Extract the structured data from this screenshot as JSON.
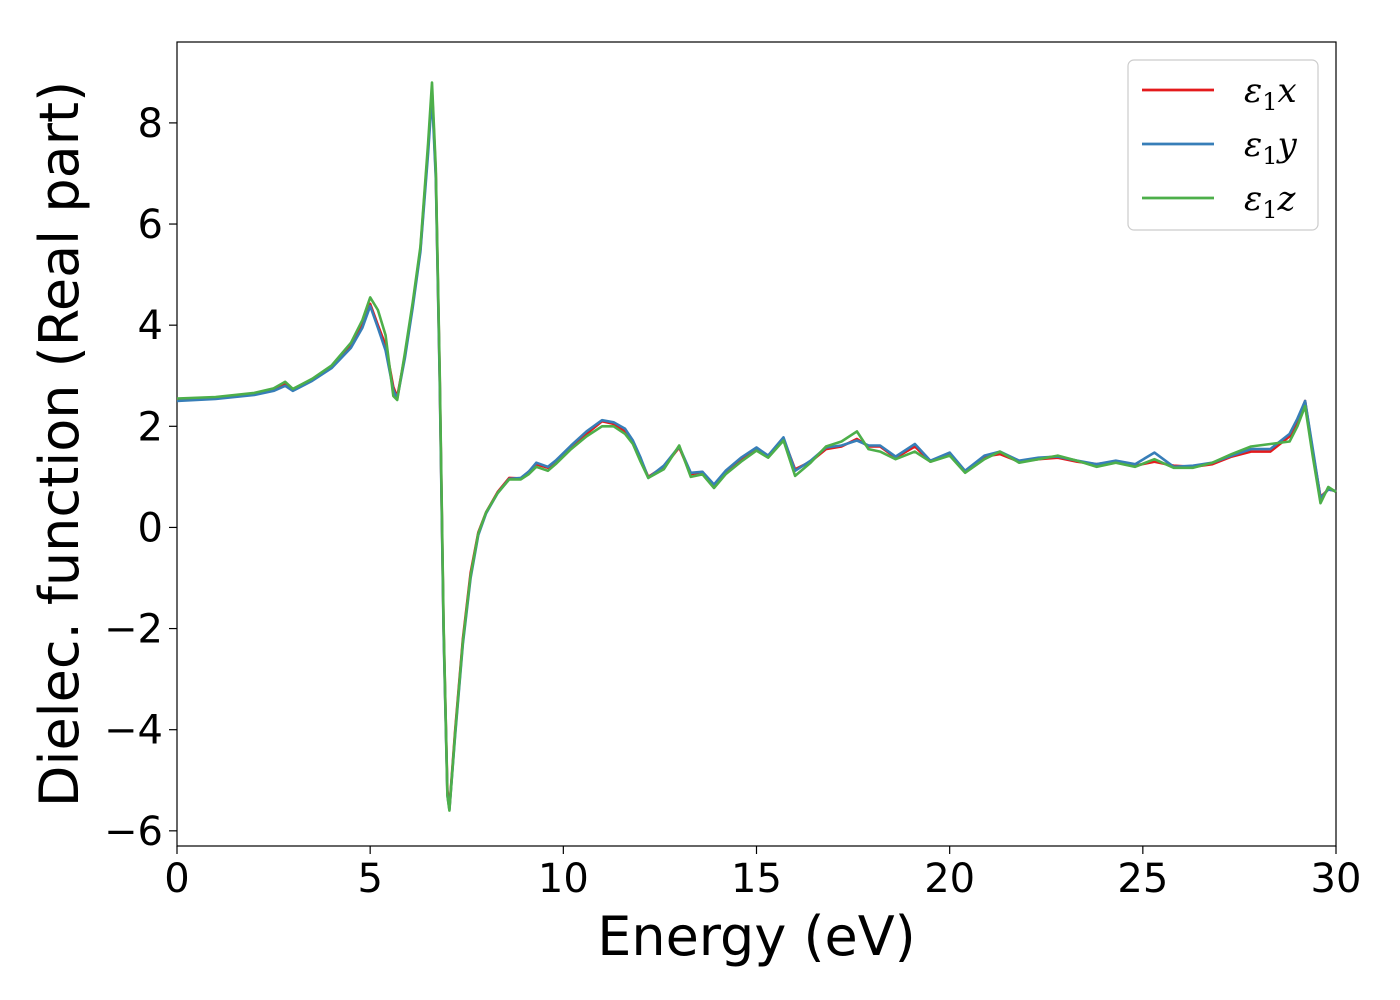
{
  "chart_data": {
    "type": "line",
    "title": "",
    "xlabel": "Energy (eV)",
    "ylabel": "Dielec. function (Real part)",
    "xlim": [
      0,
      30
    ],
    "ylim": [
      -6.3,
      9.6
    ],
    "xticks": [
      0,
      5,
      10,
      15,
      20,
      25,
      30
    ],
    "yticks": [
      -6,
      -4,
      -2,
      0,
      2,
      4,
      6,
      8
    ],
    "xtick_labels": [
      "0",
      "5",
      "10",
      "15",
      "20",
      "25",
      "30"
    ],
    "ytick_labels": [
      "−6",
      "−4",
      "−2",
      "0",
      "2",
      "4",
      "6",
      "8"
    ],
    "grid": false,
    "legend_position": "top-right",
    "series": [
      {
        "name": "ε₁x",
        "label_main": "ε",
        "label_sub": "1",
        "label_tail": "x",
        "color": "#e41a1c",
        "x": [
          0,
          1,
          2,
          2.5,
          2.8,
          3.0,
          3.5,
          4.0,
          4.5,
          4.8,
          5.0,
          5.2,
          5.4,
          5.6,
          5.7,
          5.9,
          6.1,
          6.3,
          6.5,
          6.6,
          6.7,
          6.8,
          6.9,
          7.0,
          7.05,
          7.2,
          7.4,
          7.6,
          7.8,
          8.0,
          8.3,
          8.6,
          8.9,
          9.1,
          9.3,
          9.6,
          9.8,
          10.2,
          10.6,
          11.0,
          11.3,
          11.6,
          11.8,
          12.0,
          12.2,
          12.6,
          13.0,
          13.3,
          13.6,
          13.9,
          14.2,
          14.6,
          15.0,
          15.3,
          15.7,
          16.0,
          16.4,
          16.8,
          17.2,
          17.6,
          17.9,
          18.2,
          18.6,
          19.1,
          19.5,
          20.0,
          20.4,
          20.9,
          21.3,
          21.8,
          22.3,
          22.8,
          23.3,
          23.8,
          24.3,
          24.8,
          25.3,
          25.8,
          26.3,
          26.8,
          27.3,
          27.8,
          28.3,
          28.8,
          29.0,
          29.2,
          29.4,
          29.6,
          29.8,
          30.0
        ],
        "y": [
          2.52,
          2.56,
          2.64,
          2.72,
          2.84,
          2.72,
          2.92,
          3.18,
          3.6,
          4.0,
          4.42,
          4.0,
          3.6,
          2.78,
          2.58,
          3.4,
          4.4,
          5.5,
          7.5,
          8.65,
          7.0,
          3.0,
          -2.0,
          -5.2,
          -5.55,
          -4.0,
          -2.2,
          -0.9,
          -0.1,
          0.3,
          0.7,
          0.98,
          0.97,
          1.1,
          1.25,
          1.18,
          1.3,
          1.6,
          1.85,
          2.1,
          2.05,
          1.9,
          1.7,
          1.35,
          1.0,
          1.2,
          1.58,
          1.05,
          1.1,
          0.82,
          1.1,
          1.35,
          1.55,
          1.4,
          1.75,
          1.15,
          1.3,
          1.55,
          1.6,
          1.75,
          1.6,
          1.6,
          1.38,
          1.6,
          1.3,
          1.45,
          1.1,
          1.4,
          1.45,
          1.3,
          1.35,
          1.38,
          1.3,
          1.25,
          1.3,
          1.22,
          1.3,
          1.22,
          1.2,
          1.25,
          1.4,
          1.5,
          1.5,
          1.8,
          2.1,
          2.5,
          1.5,
          0.6,
          0.75,
          0.72
        ]
      },
      {
        "name": "ε₁y",
        "label_main": "ε",
        "label_sub": "1",
        "label_tail": "y",
        "color": "#377eb8",
        "x": [
          0,
          1,
          2,
          2.5,
          2.8,
          3.0,
          3.5,
          4.0,
          4.5,
          4.8,
          5.0,
          5.2,
          5.4,
          5.6,
          5.7,
          5.9,
          6.1,
          6.3,
          6.5,
          6.6,
          6.7,
          6.8,
          6.9,
          7.0,
          7.05,
          7.2,
          7.4,
          7.6,
          7.8,
          8.0,
          8.3,
          8.6,
          8.9,
          9.1,
          9.3,
          9.6,
          9.8,
          10.2,
          10.6,
          11.0,
          11.3,
          11.6,
          11.8,
          12.0,
          12.2,
          12.6,
          13.0,
          13.3,
          13.6,
          13.9,
          14.2,
          14.6,
          15.0,
          15.3,
          15.7,
          16.0,
          16.4,
          16.8,
          17.2,
          17.6,
          17.9,
          18.2,
          18.6,
          19.1,
          19.5,
          20.0,
          20.4,
          20.9,
          21.3,
          21.8,
          22.3,
          22.8,
          23.3,
          23.8,
          24.3,
          24.8,
          25.3,
          25.8,
          26.3,
          26.8,
          27.3,
          27.8,
          28.3,
          28.8,
          29.0,
          29.2,
          29.4,
          29.6,
          29.8,
          30.0
        ],
        "y": [
          2.5,
          2.54,
          2.62,
          2.7,
          2.8,
          2.7,
          2.9,
          3.15,
          3.55,
          3.95,
          4.38,
          3.95,
          3.5,
          2.72,
          2.55,
          3.35,
          4.35,
          5.45,
          7.4,
          8.55,
          6.9,
          2.9,
          -2.1,
          -5.3,
          -5.58,
          -4.1,
          -2.3,
          -1.0,
          -0.15,
          0.28,
          0.68,
          0.96,
          0.98,
          1.1,
          1.28,
          1.2,
          1.32,
          1.62,
          1.9,
          2.12,
          2.08,
          1.95,
          1.72,
          1.38,
          0.98,
          1.22,
          1.6,
          1.08,
          1.1,
          0.85,
          1.12,
          1.38,
          1.58,
          1.42,
          1.78,
          1.12,
          1.32,
          1.58,
          1.62,
          1.72,
          1.62,
          1.62,
          1.4,
          1.65,
          1.32,
          1.48,
          1.12,
          1.42,
          1.5,
          1.32,
          1.38,
          1.4,
          1.32,
          1.25,
          1.32,
          1.25,
          1.48,
          1.2,
          1.22,
          1.28,
          1.42,
          1.55,
          1.55,
          1.85,
          2.15,
          2.5,
          1.55,
          0.58,
          0.75,
          0.72
        ]
      },
      {
        "name": "ε₁z",
        "label_main": "ε",
        "label_sub": "1",
        "label_tail": "z",
        "color": "#4daf4a",
        "x": [
          0,
          1,
          2,
          2.5,
          2.8,
          3.0,
          3.5,
          4.0,
          4.5,
          4.8,
          5.0,
          5.2,
          5.4,
          5.6,
          5.7,
          5.9,
          6.1,
          6.3,
          6.5,
          6.6,
          6.7,
          6.8,
          6.9,
          7.0,
          7.05,
          7.2,
          7.4,
          7.6,
          7.8,
          8.0,
          8.3,
          8.6,
          8.9,
          9.1,
          9.3,
          9.6,
          9.8,
          10.2,
          10.6,
          11.0,
          11.3,
          11.6,
          11.8,
          12.0,
          12.2,
          12.6,
          13.0,
          13.3,
          13.6,
          13.9,
          14.2,
          14.6,
          15.0,
          15.3,
          15.7,
          16.0,
          16.4,
          16.8,
          17.2,
          17.6,
          17.9,
          18.2,
          18.6,
          19.1,
          19.5,
          20.0,
          20.4,
          20.9,
          21.3,
          21.8,
          22.3,
          22.8,
          23.3,
          23.8,
          24.3,
          24.8,
          25.3,
          25.8,
          26.3,
          26.8,
          27.3,
          27.8,
          28.3,
          28.8,
          29.0,
          29.2,
          29.4,
          29.6,
          29.8,
          30.0
        ],
        "y": [
          2.55,
          2.58,
          2.66,
          2.75,
          2.88,
          2.74,
          2.94,
          3.2,
          3.65,
          4.1,
          4.55,
          4.3,
          3.8,
          2.6,
          2.52,
          3.45,
          4.45,
          5.55,
          7.6,
          8.8,
          7.1,
          3.1,
          -1.9,
          -5.3,
          -5.6,
          -4.05,
          -2.25,
          -0.95,
          -0.12,
          0.3,
          0.68,
          0.95,
          0.95,
          1.05,
          1.2,
          1.12,
          1.25,
          1.55,
          1.8,
          2.0,
          2.0,
          1.85,
          1.65,
          1.3,
          0.98,
          1.15,
          1.62,
          1.0,
          1.05,
          0.78,
          1.05,
          1.3,
          1.52,
          1.38,
          1.72,
          1.02,
          1.28,
          1.6,
          1.7,
          1.9,
          1.55,
          1.5,
          1.35,
          1.5,
          1.3,
          1.42,
          1.08,
          1.35,
          1.5,
          1.28,
          1.35,
          1.42,
          1.32,
          1.2,
          1.28,
          1.2,
          1.35,
          1.18,
          1.18,
          1.28,
          1.45,
          1.6,
          1.65,
          1.7,
          2.0,
          2.4,
          1.4,
          0.48,
          0.8,
          0.7
        ]
      }
    ]
  }
}
